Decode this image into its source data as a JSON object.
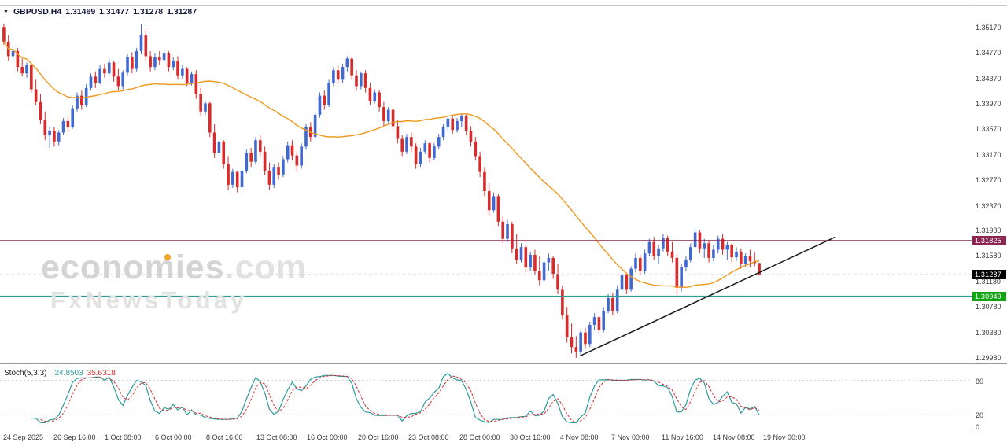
{
  "header": {
    "symbol": "GBPUSD,H4",
    "open": "1.31469",
    "high": "1.31477",
    "low": "1.31278",
    "close": "1.31287"
  },
  "watermark": {
    "brand": "economies",
    "suffix": ".com",
    "tagline": "FxNewsToday"
  },
  "colors": {
    "background": "#ffffff",
    "border": "#9a9a9a",
    "top_border": "#c8c8c8",
    "bull_candle": "#4169cf",
    "bear_candle": "#d92b2b",
    "axis_text": "#3a3a3a",
    "watermark": "#d4d4d4",
    "watermark_accent": "#f5a623",
    "header_text": "#14143c"
  },
  "chart_data": {
    "type": "candlestick",
    "symbol": "GBPUSD",
    "timeframe": "H4",
    "title": "GBPUSD,H4 1.31469 1.31477 1.31278 1.31287",
    "grid": "off",
    "price_range": [
      1.29893,
      1.35528
    ],
    "price_axis_labels": [
      "1.35170",
      "1.34770",
      "1.34370",
      "1.33970",
      "1.33570",
      "1.33170",
      "1.32770",
      "1.32370",
      "1.31980",
      "1.31580",
      "1.31180",
      "1.30780",
      "1.30380",
      "1.29980"
    ],
    "time_axis_labels": [
      "24 Sep 2025",
      "26 Sep 16:00",
      "1 Oct 08:00",
      "6 Oct 00:00",
      "8 Oct 16:00",
      "13 Oct 08:00",
      "16 Oct 00:00",
      "20 Oct 16:00",
      "23 Oct 08:00",
      "28 Oct 00:00",
      "30 Oct 16:00",
      "4 Nov 08:00",
      "7 Nov 00:00",
      "11 Nov 16:00",
      "14 Nov 08:00",
      "19 Nov 00:00"
    ],
    "candles": [
      [
        1.3518,
        1.3523,
        1.349,
        1.3495
      ],
      [
        1.3495,
        1.3505,
        1.3465,
        1.3472
      ],
      [
        1.3472,
        1.3488,
        1.3462,
        1.348
      ],
      [
        1.348,
        1.3485,
        1.3448,
        1.3455
      ],
      [
        1.3455,
        1.3468,
        1.344,
        1.3445
      ],
      [
        1.3445,
        1.3462,
        1.3438,
        1.3458
      ],
      [
        1.3458,
        1.346,
        1.3415,
        1.342
      ],
      [
        1.342,
        1.3435,
        1.3395,
        1.34
      ],
      [
        1.34,
        1.3412,
        1.3365,
        1.3372
      ],
      [
        1.3372,
        1.3385,
        1.334,
        1.3348
      ],
      [
        1.3348,
        1.3362,
        1.3328,
        1.3355
      ],
      [
        1.3355,
        1.336,
        1.333,
        1.3338
      ],
      [
        1.3338,
        1.3356,
        1.3332,
        1.3352
      ],
      [
        1.3352,
        1.3375,
        1.3348,
        1.337
      ],
      [
        1.337,
        1.3378,
        1.3352,
        1.336
      ],
      [
        1.336,
        1.3395,
        1.3358,
        1.339
      ],
      [
        1.339,
        1.3415,
        1.3385,
        1.341
      ],
      [
        1.341,
        1.3418,
        1.3388,
        1.3395
      ],
      [
        1.3395,
        1.3428,
        1.3392,
        1.3422
      ],
      [
        1.3422,
        1.3445,
        1.3418,
        1.344
      ],
      [
        1.344,
        1.3448,
        1.3422,
        1.343
      ],
      [
        1.343,
        1.3458,
        1.3428,
        1.3452
      ],
      [
        1.3452,
        1.346,
        1.3438,
        1.3445
      ],
      [
        1.3445,
        1.3468,
        1.3442,
        1.3462
      ],
      [
        1.3462,
        1.3465,
        1.3432,
        1.344
      ],
      [
        1.344,
        1.3452,
        1.3418,
        1.3425
      ],
      [
        1.3425,
        1.345,
        1.342,
        1.3446
      ],
      [
        1.3446,
        1.3475,
        1.3442,
        1.347
      ],
      [
        1.347,
        1.3478,
        1.3445,
        1.3452
      ],
      [
        1.3452,
        1.3485,
        1.3448,
        1.348
      ],
      [
        1.348,
        1.3522,
        1.3475,
        1.3505
      ],
      [
        1.3505,
        1.3512,
        1.3465,
        1.3472
      ],
      [
        1.3472,
        1.348,
        1.3448,
        1.3455
      ],
      [
        1.3455,
        1.3476,
        1.345,
        1.347
      ],
      [
        1.347,
        1.348,
        1.3458,
        1.3466
      ],
      [
        1.3466,
        1.3482,
        1.346,
        1.3476
      ],
      [
        1.3476,
        1.348,
        1.3448,
        1.3455
      ],
      [
        1.3455,
        1.347,
        1.345,
        1.3465
      ],
      [
        1.3465,
        1.3472,
        1.3435,
        1.3442
      ],
      [
        1.3442,
        1.3458,
        1.3436,
        1.3452
      ],
      [
        1.3452,
        1.3455,
        1.3425,
        1.343
      ],
      [
        1.343,
        1.3448,
        1.3426,
        1.3444
      ],
      [
        1.3444,
        1.345,
        1.3405,
        1.3412
      ],
      [
        1.3412,
        1.3422,
        1.3378,
        1.3385
      ],
      [
        1.3385,
        1.3402,
        1.338,
        1.3398
      ],
      [
        1.3398,
        1.34,
        1.3345,
        1.3352
      ],
      [
        1.3352,
        1.3365,
        1.3312,
        1.332
      ],
      [
        1.332,
        1.3342,
        1.3315,
        1.3338
      ],
      [
        1.3338,
        1.334,
        1.3295,
        1.3302
      ],
      [
        1.3302,
        1.3315,
        1.3262,
        1.327
      ],
      [
        1.327,
        1.3295,
        1.3265,
        1.329
      ],
      [
        1.329,
        1.3292,
        1.3258,
        1.3266
      ],
      [
        1.3266,
        1.3298,
        1.3262,
        1.3292
      ],
      [
        1.3292,
        1.3325,
        1.3288,
        1.332
      ],
      [
        1.332,
        1.3328,
        1.3298,
        1.3306
      ],
      [
        1.3306,
        1.3345,
        1.3302,
        1.334
      ],
      [
        1.334,
        1.3348,
        1.3315,
        1.3322
      ],
      [
        1.3322,
        1.333,
        1.3285,
        1.3292
      ],
      [
        1.3292,
        1.3305,
        1.3262,
        1.327
      ],
      [
        1.327,
        1.3302,
        1.3265,
        1.3298
      ],
      [
        1.3298,
        1.3305,
        1.3278,
        1.3286
      ],
      [
        1.3286,
        1.3315,
        1.3282,
        1.331
      ],
      [
        1.331,
        1.3338,
        1.3305,
        1.3332
      ],
      [
        1.3332,
        1.334,
        1.3308,
        1.3316
      ],
      [
        1.3316,
        1.3322,
        1.3292,
        1.33
      ],
      [
        1.33,
        1.3335,
        1.3295,
        1.333
      ],
      [
        1.333,
        1.3365,
        1.3325,
        1.336
      ],
      [
        1.336,
        1.3368,
        1.3338,
        1.3345
      ],
      [
        1.3345,
        1.3385,
        1.3342,
        1.338
      ],
      [
        1.338,
        1.3415,
        1.3375,
        1.341
      ],
      [
        1.341,
        1.3418,
        1.3388,
        1.3395
      ],
      [
        1.3395,
        1.3435,
        1.3392,
        1.343
      ],
      [
        1.343,
        1.3455,
        1.3425,
        1.345
      ],
      [
        1.345,
        1.3458,
        1.3428,
        1.3435
      ],
      [
        1.3435,
        1.346,
        1.343,
        1.3455
      ],
      [
        1.3455,
        1.3472,
        1.3448,
        1.3468
      ],
      [
        1.3468,
        1.347,
        1.3435,
        1.3442
      ],
      [
        1.3442,
        1.345,
        1.3418,
        1.3425
      ],
      [
        1.3425,
        1.3448,
        1.342,
        1.3445
      ],
      [
        1.3445,
        1.345,
        1.3415,
        1.3422
      ],
      [
        1.3422,
        1.343,
        1.3395,
        1.3402
      ],
      [
        1.3402,
        1.342,
        1.3398,
        1.3415
      ],
      [
        1.3415,
        1.3418,
        1.3385,
        1.3392
      ],
      [
        1.3392,
        1.34,
        1.3362,
        1.337
      ],
      [
        1.337,
        1.3392,
        1.3365,
        1.3388
      ],
      [
        1.3388,
        1.339,
        1.3355,
        1.3362
      ],
      [
        1.3362,
        1.3372,
        1.3335,
        1.3342
      ],
      [
        1.3342,
        1.3348,
        1.3315,
        1.3322
      ],
      [
        1.3322,
        1.335,
        1.3318,
        1.3345
      ],
      [
        1.3345,
        1.3352,
        1.3322,
        1.333
      ],
      [
        1.333,
        1.3335,
        1.3295,
        1.3302
      ],
      [
        1.3302,
        1.3328,
        1.3298,
        1.3322
      ],
      [
        1.3322,
        1.334,
        1.3318,
        1.3335
      ],
      [
        1.3335,
        1.3338,
        1.3305,
        1.3312
      ],
      [
        1.3312,
        1.3335,
        1.3308,
        1.333
      ],
      [
        1.333,
        1.335,
        1.3326,
        1.3345
      ],
      [
        1.3345,
        1.3365,
        1.334,
        1.336
      ],
      [
        1.336,
        1.3378,
        1.3355,
        1.3374
      ],
      [
        1.3374,
        1.338,
        1.335,
        1.3356
      ],
      [
        1.3356,
        1.3375,
        1.3352,
        1.337
      ],
      [
        1.337,
        1.3382,
        1.336,
        1.3378
      ],
      [
        1.3378,
        1.338,
        1.3348,
        1.3355
      ],
      [
        1.3355,
        1.3362,
        1.333,
        1.3338
      ],
      [
        1.3338,
        1.3345,
        1.3308,
        1.3315
      ],
      [
        1.3315,
        1.3322,
        1.3282,
        1.329
      ],
      [
        1.329,
        1.3298,
        1.3252,
        1.326
      ],
      [
        1.326,
        1.3272,
        1.3222,
        1.323
      ],
      [
        1.323,
        1.3258,
        1.3226,
        1.3252
      ],
      [
        1.3252,
        1.3255,
        1.3205,
        1.3212
      ],
      [
        1.3212,
        1.322,
        1.3178,
        1.3185
      ],
      [
        1.3185,
        1.3215,
        1.318,
        1.3208
      ],
      [
        1.3208,
        1.3212,
        1.3162,
        1.317
      ],
      [
        1.317,
        1.3192,
        1.3145,
        1.3152
      ],
      [
        1.3152,
        1.3178,
        1.3148,
        1.3172
      ],
      [
        1.3172,
        1.3175,
        1.3132,
        1.314
      ],
      [
        1.314,
        1.3165,
        1.3135,
        1.316
      ],
      [
        1.316,
        1.3168,
        1.3128,
        1.3135
      ],
      [
        1.3135,
        1.3158,
        1.3112,
        1.312
      ],
      [
        1.312,
        1.3152,
        1.3116,
        1.3148
      ],
      [
        1.3148,
        1.3162,
        1.3135,
        1.3155
      ],
      [
        1.3155,
        1.3158,
        1.3122,
        1.313
      ],
      [
        1.313,
        1.3145,
        1.3098,
        1.3105
      ],
      [
        1.3105,
        1.3112,
        1.3058,
        1.3065
      ],
      [
        1.3065,
        1.3078,
        1.3022,
        1.303
      ],
      [
        1.303,
        1.3052,
        1.3005,
        1.3015
      ],
      [
        1.3015,
        1.3032,
        1.2998,
        1.3008
      ],
      [
        1.3008,
        1.3042,
        1.3002,
        1.3038
      ],
      [
        1.3038,
        1.3045,
        1.3012,
        1.302
      ],
      [
        1.302,
        1.3055,
        1.3015,
        1.305
      ],
      [
        1.305,
        1.3068,
        1.3042,
        1.3062
      ],
      [
        1.3062,
        1.3065,
        1.3035,
        1.3042
      ],
      [
        1.3042,
        1.3078,
        1.3038,
        1.3072
      ],
      [
        1.3072,
        1.3098,
        1.3068,
        1.3092
      ],
      [
        1.3092,
        1.31,
        1.3065,
        1.3072
      ],
      [
        1.3072,
        1.3112,
        1.3068,
        1.3105
      ],
      [
        1.3105,
        1.3135,
        1.31,
        1.3128
      ],
      [
        1.3128,
        1.3132,
        1.3098,
        1.3105
      ],
      [
        1.3105,
        1.3142,
        1.3102,
        1.3138
      ],
      [
        1.3138,
        1.3162,
        1.3132,
        1.3155
      ],
      [
        1.3155,
        1.316,
        1.3128,
        1.3135
      ],
      [
        1.3135,
        1.3168,
        1.313,
        1.3162
      ],
      [
        1.3162,
        1.3185,
        1.3158,
        1.318
      ],
      [
        1.318,
        1.3188,
        1.3152,
        1.3158
      ],
      [
        1.3158,
        1.3175,
        1.3145,
        1.317
      ],
      [
        1.317,
        1.3192,
        1.3165,
        1.3186
      ],
      [
        1.3186,
        1.319,
        1.3158,
        1.3165
      ],
      [
        1.3165,
        1.318,
        1.3148,
        1.3155
      ],
      [
        1.3155,
        1.316,
        1.3098,
        1.3108
      ],
      [
        1.3108,
        1.3145,
        1.3102,
        1.314
      ],
      [
        1.314,
        1.3158,
        1.3135,
        1.3152
      ],
      [
        1.3152,
        1.3178,
        1.3148,
        1.3172
      ],
      [
        1.3172,
        1.3202,
        1.3168,
        1.3195
      ],
      [
        1.3195,
        1.3198,
        1.3162,
        1.317
      ],
      [
        1.317,
        1.3185,
        1.3155,
        1.3178
      ],
      [
        1.3178,
        1.3182,
        1.3148,
        1.3155
      ],
      [
        1.3155,
        1.3175,
        1.315,
        1.3168
      ],
      [
        1.3168,
        1.319,
        1.3162,
        1.3185
      ],
      [
        1.3185,
        1.3192,
        1.316,
        1.3168
      ],
      [
        1.3168,
        1.318,
        1.3152,
        1.3175
      ],
      [
        1.3175,
        1.3178,
        1.3148,
        1.3156
      ],
      [
        1.3156,
        1.3172,
        1.315,
        1.3165
      ],
      [
        1.3165,
        1.317,
        1.3138,
        1.3145
      ],
      [
        1.3145,
        1.3162,
        1.314,
        1.3158
      ],
      [
        1.3158,
        1.3168,
        1.314,
        1.315
      ],
      [
        1.315,
        1.3165,
        1.3142,
        1.31469
      ],
      [
        1.31469,
        1.31477,
        1.31278,
        1.31287
      ]
    ],
    "ma": {
      "type": "SMA",
      "period": 34,
      "color": "#f0981e"
    },
    "overlays": {
      "resistance": {
        "price": 1.31825,
        "label": "1.31825",
        "line_color": "#8b2652",
        "tag_color": "#8b2652"
      },
      "support": {
        "price": 1.30949,
        "label": "1.30949",
        "line_color": "#2e9b9b",
        "tag_color": "#12a312"
      },
      "last_price": {
        "price": 1.31287,
        "label": "1.31287",
        "line_color": "#b4b4b4",
        "tag_color": "#000000"
      },
      "trendline": {
        "x1_frac": 0.597,
        "price1": 1.3001,
        "x2_frac": 0.86,
        "price2": 1.3188,
        "color": "#1a1a1a"
      }
    },
    "stochastic": {
      "label": "Stoch(5,3,3)",
      "k_value": "24.8503",
      "d_value": "35.6318",
      "k_period": 5,
      "d_period": 3,
      "slowing": 3,
      "k_color": "#2e9b9b",
      "d_color": "#d92b2b",
      "range": [
        0,
        100
      ],
      "levels": [
        80,
        20,
        0
      ],
      "level_labels": [
        "80",
        "20",
        "0"
      ]
    }
  }
}
